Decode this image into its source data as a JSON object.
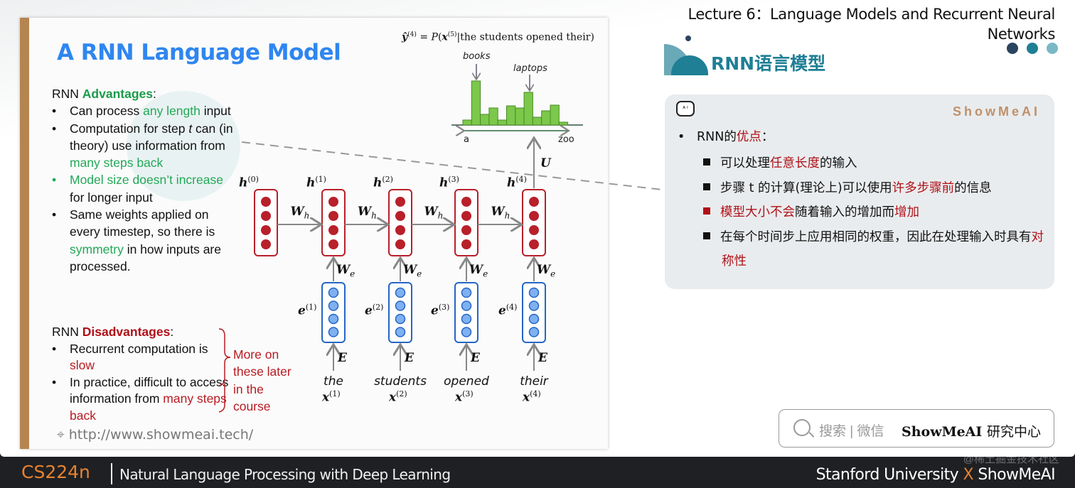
{
  "header": {
    "lecture_title": "Lecture 6：Language Models and Recurrent Neural Networks",
    "section_title": "RNN语言模型"
  },
  "slide": {
    "title": "A RNN Language Model",
    "formula": "ŷ(4) = P(x(5)|the students opened their)",
    "advantages_heading_prefix": "RNN ",
    "advantages_heading": "Advantages",
    "colon": ":",
    "advantages": [
      {
        "parts": [
          {
            "t": "Can process ",
            "c": ""
          },
          {
            "t": "any length",
            "c": "g"
          },
          {
            "t": " input",
            "c": ""
          }
        ]
      },
      {
        "parts": [
          {
            "t": "Computation for step ",
            "c": ""
          },
          {
            "t": "t",
            "c": "i"
          },
          {
            "t": " can (in theory) use information from ",
            "c": ""
          },
          {
            "t": "many steps back",
            "c": "g"
          }
        ]
      },
      {
        "parts": [
          {
            "t": "Model size doesn’t increase",
            "c": "g"
          },
          {
            "t": " for longer input",
            "c": ""
          }
        ]
      },
      {
        "parts": [
          {
            "t": "Same weights applied on every timestep, so there is ",
            "c": ""
          },
          {
            "t": "symmetry",
            "c": "g"
          },
          {
            "t": " in how inputs are processed.",
            "c": ""
          }
        ]
      }
    ],
    "disadvantages_heading_prefix": "RNN ",
    "disadvantages_heading": "Disadvantages",
    "disadvantages": [
      {
        "parts": [
          {
            "t": "Recurrent computation is ",
            "c": ""
          },
          {
            "t": "slow",
            "c": "r"
          }
        ]
      },
      {
        "parts": [
          {
            "t": "In practice, difficult to access information from ",
            "c": ""
          },
          {
            "t": "many steps back",
            "c": "r"
          }
        ]
      }
    ],
    "brace_note": "More on these later in the course",
    "url": "http://www.showmeai.tech/",
    "diagram": {
      "hidden_labels": [
        "h",
        "h",
        "h",
        "h",
        "h"
      ],
      "hidden_sup": [
        "(0)",
        "(1)",
        "(2)",
        "(3)",
        "(4)"
      ],
      "embed_label": "e",
      "embed_sup": [
        "(1)",
        "(2)",
        "(3)",
        "(4)"
      ],
      "input_label": "x",
      "input_sup": [
        "(1)",
        "(2)",
        "(3)",
        "(4)"
      ],
      "words": [
        "the",
        "students",
        "opened",
        "their"
      ],
      "Wh": "W",
      "Wh_sub": "h",
      "We": "W",
      "We_sub": "e",
      "E": "E",
      "U": "U",
      "hist_labels": {
        "books": "books",
        "laptops": "laptops",
        "a": "a",
        "zoo": "zoo"
      },
      "hist_values": [
        7,
        62,
        15,
        24,
        7,
        27,
        24,
        46,
        11,
        20,
        28,
        4
      ],
      "colors": {
        "hidden": "#b8202a",
        "embed": "#2566c4",
        "embed_fill": "#7fb0f0",
        "bar": "#7cc84a",
        "arrow": "#888888"
      }
    }
  },
  "card": {
    "brand": "ShowMeAI",
    "bullet_prefix": "RNN的",
    "bullet_highlight": "优点",
    "bullet_suffix": "：",
    "items": [
      {
        "parts": [
          {
            "t": "可以处理",
            "c": ""
          },
          {
            "t": "任意长度",
            "c": "cr"
          },
          {
            "t": "的输入",
            "c": ""
          }
        ]
      },
      {
        "parts": [
          {
            "t": "步骤 t 的计算(理论上)可以使用",
            "c": ""
          },
          {
            "t": "许多步骤前",
            "c": "cr"
          },
          {
            "t": "的信息",
            "c": ""
          }
        ]
      },
      {
        "red_square": true,
        "parts": [
          {
            "t": "模型大小不会",
            "c": "cr"
          },
          {
            "t": "随着输入的增加而",
            "c": ""
          },
          {
            "t": "增加",
            "c": "cr"
          }
        ]
      },
      {
        "parts": [
          {
            "t": "在每个时间步上应用相同的权重，因此在处理输入时具有",
            "c": ""
          },
          {
            "t": "对称性",
            "c": "cr"
          }
        ]
      }
    ]
  },
  "search": {
    "hint": "搜索 | 微信",
    "brand": "ShowMeAI",
    "suffix": "研究中心"
  },
  "footer": {
    "course": "CS224n",
    "course_title": "Natural Language Processing with Deep Learning",
    "uni": "Stanford University",
    "x": "X",
    "brand": "ShowMeAI",
    "watermark": "@稀土掘金技术社区"
  },
  "colors": {
    "accent_orange": "#e8822f",
    "title_blue": "#2f86f0",
    "green": "#22a857",
    "red": "#b01018",
    "teal": "#1e7f95"
  }
}
